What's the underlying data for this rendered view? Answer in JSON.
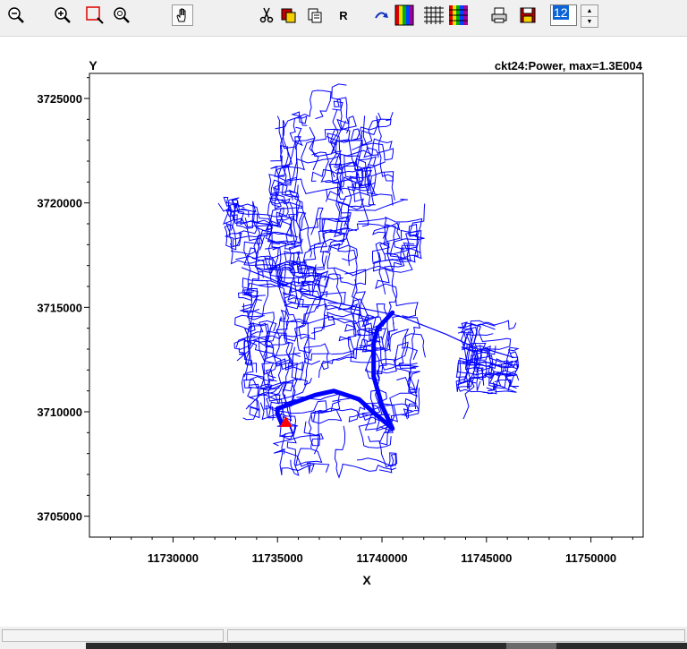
{
  "toolbar": {
    "buttons": [
      {
        "name": "zoom-out-button",
        "icon": "magnifier-minus-icon"
      },
      {
        "name": "zoom-in-button",
        "icon": "magnifier-plus-icon"
      },
      {
        "name": "zoom-rect-button",
        "icon": "red-rectangle-icon"
      },
      {
        "name": "zoom-fit-button",
        "icon": "magnifier-zoom-icon"
      },
      {
        "name": "pan-button",
        "icon": "hand-icon"
      },
      {
        "name": "cut-button",
        "icon": "scissors-icon"
      },
      {
        "name": "copy-button",
        "icon": "copy-icon"
      },
      {
        "name": "paste-button",
        "icon": "paste-icon"
      },
      {
        "name": "refresh-button",
        "icon": "letter-r-icon",
        "label": "R"
      },
      {
        "name": "redraw-button",
        "icon": "curved-arrow-icon"
      },
      {
        "name": "color-bars-button",
        "icon": "color-bars-icon"
      },
      {
        "name": "grid-button",
        "icon": "grid-icon"
      },
      {
        "name": "color-grid-button",
        "icon": "color-grid-icon"
      },
      {
        "name": "print-button",
        "icon": "printer-icon"
      },
      {
        "name": "save-button",
        "icon": "floppy-disk-icon"
      }
    ],
    "font_size": "12"
  },
  "chart_data": {
    "type": "line",
    "title": "ckt24:Power, max=1.3E004",
    "xlabel": "X",
    "ylabel": "Y",
    "xlim": [
      11726000,
      11752500
    ],
    "ylim": [
      3704000,
      3726200
    ],
    "xticks": [
      11730000,
      11735000,
      11740000,
      11745000,
      11750000
    ],
    "xtick_labels": [
      "11730000",
      "11735000",
      "11740000",
      "11745000",
      "11750000"
    ],
    "yticks": [
      3705000,
      3710000,
      3715000,
      3720000,
      3725000
    ],
    "ytick_labels": [
      "3705000",
      "3710000",
      "3715000",
      "3720000",
      "3725000"
    ],
    "grid": false,
    "series": [
      {
        "role": "main-feeder",
        "color": "#0000ff",
        "weight": "heavy",
        "points": [
          [
            11735200,
            3709450
          ],
          [
            11735000,
            3709900
          ],
          [
            11735000,
            3710150
          ],
          [
            11736800,
            3710800
          ],
          [
            11737700,
            3711000
          ],
          [
            11738900,
            3710600
          ],
          [
            11739500,
            3710050
          ],
          [
            11740500,
            3709200
          ],
          [
            11740000,
            3710300
          ],
          [
            11739600,
            3711700
          ],
          [
            11739600,
            3713300
          ],
          [
            11739800,
            3714000
          ],
          [
            11740500,
            3714750
          ]
        ]
      },
      {
        "role": "trunk-line",
        "color": "#0000ff",
        "weight": "light",
        "points": [
          [
            11733300,
            3716900
          ],
          [
            11734600,
            3716400
          ],
          [
            11736200,
            3715700
          ],
          [
            11737900,
            3715200
          ],
          [
            11739300,
            3714900
          ],
          [
            11740800,
            3714600
          ],
          [
            11743100,
            3713700
          ],
          [
            11744600,
            3713000
          ],
          [
            11745000,
            3713000
          ],
          [
            11746300,
            3712600
          ]
        ]
      }
    ],
    "source_marker": {
      "x": 11735400,
      "y": 3709450,
      "color": "#ff0000",
      "shape": "triangle"
    }
  }
}
